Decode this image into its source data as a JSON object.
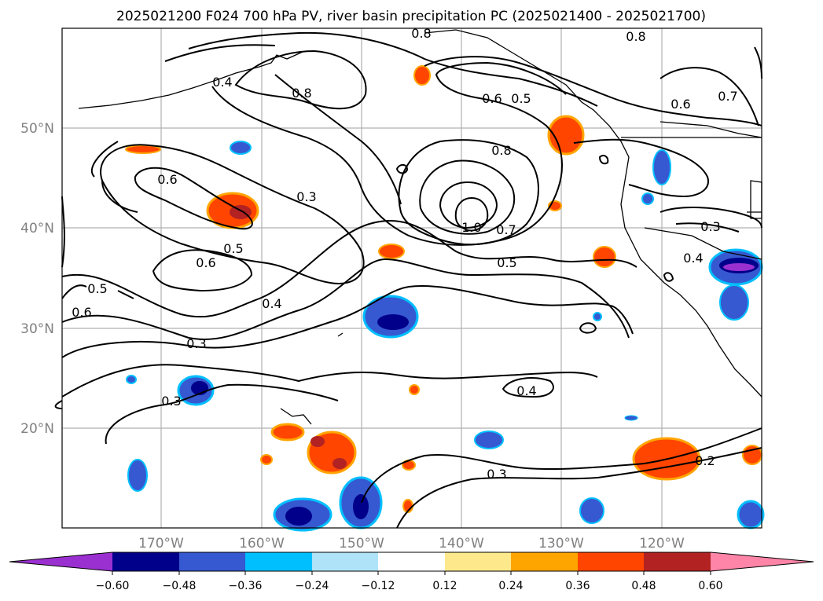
{
  "title": "2025021200 F024 700 hPa PV, river basin precipitation PC (2025021400 - 2025021700)",
  "map": {
    "lat_labels": [
      "50°N",
      "40°N",
      "30°N",
      "20°N"
    ],
    "lon_labels": [
      "170°W",
      "160°W",
      "150°W",
      "140°W",
      "130°W",
      "120°W"
    ],
    "contour_labels": [
      "0.8",
      "0.8",
      "0.4",
      "0.8",
      "0.6",
      "0.5",
      "0.6",
      "0.7",
      "0.6",
      "0.3",
      "0.8",
      "0.5",
      "0.6",
      "1.0",
      "0.7",
      "0.5",
      "0.3",
      "0.4",
      "0.5",
      "0.6",
      "0.4",
      "0.3",
      "0.3",
      "0.4",
      "0.3",
      "0.2"
    ]
  },
  "colorbar": {
    "colors": [
      "#9b30d0",
      "#00008b",
      "#3658d0",
      "#00bfff",
      "#aee3f8",
      "#ffffff",
      "#fde98c",
      "#ffa500",
      "#ff4500",
      "#b22222",
      "#ff85a8"
    ],
    "tick_labels": [
      "−0.60",
      "−0.48",
      "−0.36",
      "−0.24",
      "−0.12",
      "0.12",
      "0.24",
      "0.36",
      "0.48",
      "0.60"
    ]
  }
}
